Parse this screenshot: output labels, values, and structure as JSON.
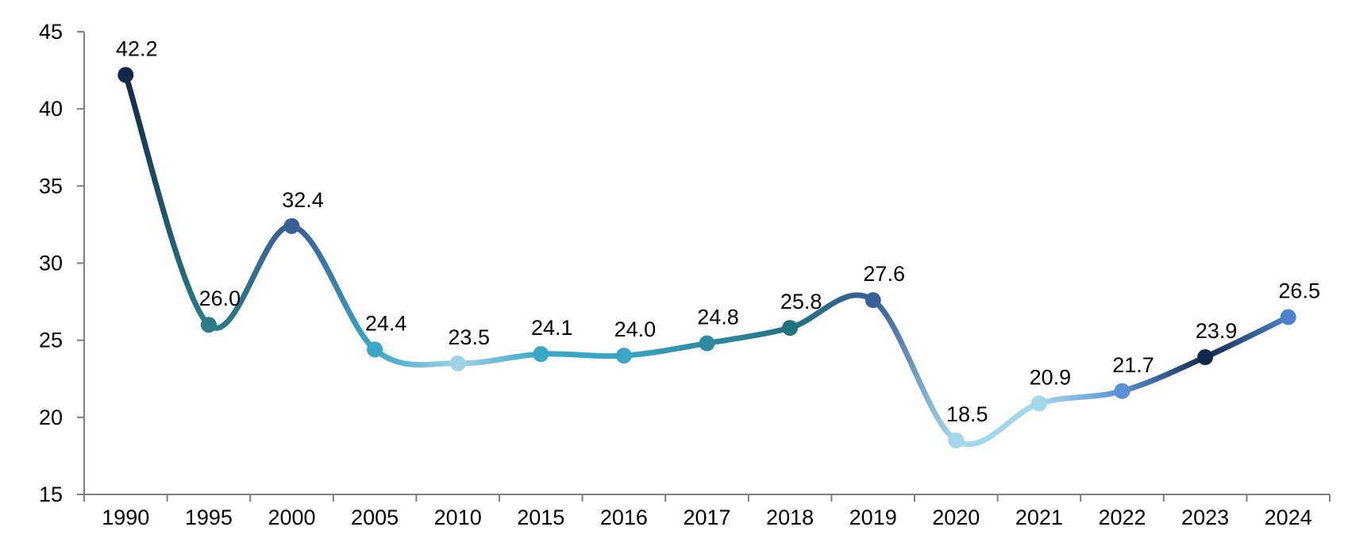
{
  "chart_data": {
    "type": "line",
    "title": "",
    "xlabel": "",
    "ylabel": "",
    "categories": [
      "1990",
      "1995",
      "2000",
      "2005",
      "2010",
      "2015",
      "2016",
      "2017",
      "2018",
      "2019",
      "2020",
      "2021",
      "2022",
      "2023",
      "2024"
    ],
    "series": [
      {
        "values": [
          42.2,
          26.0,
          32.4,
          24.4,
          23.5,
          24.1,
          24.0,
          24.8,
          25.8,
          27.6,
          18.5,
          20.9,
          21.7,
          23.9,
          26.5
        ],
        "labels": [
          "42.2",
          "26.0",
          "32.4",
          "24.4",
          "23.5",
          "24.1",
          "24.0",
          "24.8",
          "25.8",
          "27.6",
          "18.5",
          "20.9",
          "21.7",
          "23.9",
          "26.5"
        ]
      }
    ],
    "ylim": [
      15,
      45
    ],
    "yticks": [
      "15",
      "20",
      "25",
      "30",
      "35",
      "40",
      "45"
    ],
    "grid": false,
    "legend": "none",
    "smooth": true,
    "marker_colors": [
      "#13294b",
      "#2a7c86",
      "#3a5f97",
      "#38a6c4",
      "#9fd3e3",
      "#38a6c4",
      "#38a6c4",
      "#2e8ba2",
      "#23737e",
      "#3a5f97",
      "#a3d8e8",
      "#a3d8e8",
      "#5b90d6",
      "#13294b",
      "#4f82cc"
    ],
    "axis_color": "#7f7f7f"
  }
}
